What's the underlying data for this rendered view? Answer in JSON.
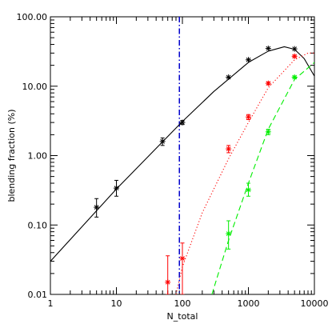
{
  "chart_data": {
    "type": "scatter",
    "title": "",
    "xlabel": "N_total",
    "ylabel": "blending fraction (%)",
    "xscale": "log",
    "yscale": "log",
    "xlim": [
      1,
      10000
    ],
    "ylim": [
      0.01,
      100
    ],
    "x_ticks": [
      1,
      10,
      100,
      1000,
      10000
    ],
    "x_tick_labels": [
      "1",
      "10",
      "100",
      "1000",
      "10000"
    ],
    "y_ticks": [
      0.01,
      0.1,
      1,
      10,
      100
    ],
    "y_tick_labels": [
      "0.01",
      "0.10",
      "1.00",
      "10.00",
      "100.00"
    ],
    "grid": false,
    "legend": "none",
    "vertical_line": {
      "x": 90,
      "color": "#0000cc",
      "style": "dash-dot"
    },
    "series": [
      {
        "color": "#000000",
        "points": [
          {
            "x": 5,
            "y": 0.18,
            "y_lo": 0.13,
            "y_hi": 0.24
          },
          {
            "x": 10,
            "y": 0.34,
            "y_lo": 0.26,
            "y_hi": 0.44
          },
          {
            "x": 50,
            "y": 1.6,
            "y_lo": 1.4,
            "y_hi": 1.8
          },
          {
            "x": 100,
            "y": 3.0,
            "y_lo": 2.8,
            "y_hi": 3.2
          },
          {
            "x": 500,
            "y": 13.5,
            "y_lo": 13.5,
            "y_hi": 13.5
          },
          {
            "x": 1000,
            "y": 24,
            "y_lo": 24,
            "y_hi": 24
          },
          {
            "x": 2000,
            "y": 35,
            "y_lo": 35,
            "y_hi": 35
          },
          {
            "x": 5000,
            "y": 34.5,
            "y_lo": 34.5,
            "y_hi": 34.5
          }
        ],
        "curve": {
          "style": "solid",
          "points": [
            [
              1,
              0.03
            ],
            [
              10,
              0.33
            ],
            [
              100,
              3.1
            ],
            [
              300,
              8.4
            ],
            [
              1000,
              22
            ],
            [
              2000,
              32
            ],
            [
              3500,
              37
            ],
            [
              5000,
              34
            ],
            [
              7000,
              25
            ],
            [
              10000,
              14
            ]
          ]
        }
      },
      {
        "color": "#ff0000",
        "points": [
          {
            "x": 60,
            "y": 0.015,
            "y_lo": 0.01,
            "y_hi": 0.036
          },
          {
            "x": 100,
            "y": 0.033,
            "y_lo": 0.01,
            "y_hi": 0.055
          },
          {
            "x": 500,
            "y": 1.25,
            "y_lo": 1.1,
            "y_hi": 1.4
          },
          {
            "x": 1000,
            "y": 3.6,
            "y_lo": 3.3,
            "y_hi": 3.9
          },
          {
            "x": 2000,
            "y": 11,
            "y_lo": 10.5,
            "y_hi": 11.5
          },
          {
            "x": 5000,
            "y": 27,
            "y_lo": 26,
            "y_hi": 28
          }
        ],
        "curve": {
          "style": "dotted",
          "points": [
            [
              80,
              0.01
            ],
            [
              100,
              0.025
            ],
            [
              200,
              0.15
            ],
            [
              500,
              0.9
            ],
            [
              1000,
              3.0
            ],
            [
              2000,
              9.5
            ],
            [
              5000,
              24
            ],
            [
              8000,
              30
            ],
            [
              10000,
              30
            ]
          ]
        }
      },
      {
        "color": "#00ee00",
        "points": [
          {
            "x": 500,
            "y": 0.075,
            "y_lo": 0.045,
            "y_hi": 0.115
          },
          {
            "x": 1000,
            "y": 0.32,
            "y_lo": 0.26,
            "y_hi": 0.4
          },
          {
            "x": 2000,
            "y": 2.2,
            "y_lo": 2.0,
            "y_hi": 2.4
          },
          {
            "x": 5000,
            "y": 13.5,
            "y_lo": 13,
            "y_hi": 14
          }
        ],
        "curve": {
          "style": "dashed",
          "points": [
            [
              280,
              0.01
            ],
            [
              500,
              0.06
            ],
            [
              1000,
              0.4
            ],
            [
              2000,
              2.4
            ],
            [
              5000,
              12.5
            ],
            [
              10000,
              22
            ]
          ]
        }
      }
    ]
  }
}
